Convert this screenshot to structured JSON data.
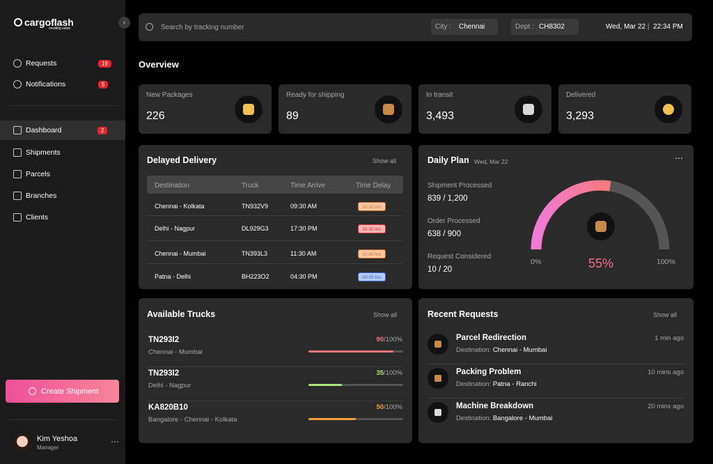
{
  "brand": {
    "name": "cargoflash",
    "tagline": "creating value"
  },
  "nav_top": [
    {
      "label": "Requests",
      "badge": "19"
    },
    {
      "label": "Notifications",
      "badge": "5"
    }
  ],
  "nav_main": [
    {
      "label": "Dashboard",
      "badge": "2"
    },
    {
      "label": "Shipments"
    },
    {
      "label": "Parcels"
    },
    {
      "label": "Branches"
    },
    {
      "label": "Clients"
    }
  ],
  "create_button": "Create Shipment",
  "user": {
    "name": "Kim Yeshoa",
    "role": "Manager"
  },
  "search": {
    "placeholder": "Search by tracking number"
  },
  "filters": [
    {
      "label": "City :",
      "value": "Chennai"
    },
    {
      "label": "Dept :",
      "value": "CH8302"
    }
  ],
  "datetime": {
    "date": "Wed, Mar 22",
    "time": "22:34 PM"
  },
  "overview": {
    "title": "Overview",
    "cards": [
      {
        "label": "New Packages",
        "value": "226"
      },
      {
        "label": "Ready for shipping",
        "value": "89"
      },
      {
        "label": "In transit",
        "value": "3,493"
      },
      {
        "label": "Delivered",
        "value": "3,293"
      }
    ]
  },
  "delayed": {
    "title": "Delayed Delivery",
    "show_all": "Show all",
    "columns": [
      "Destination",
      "Truck",
      "Time Arrive",
      "Time Delay"
    ],
    "rows": [
      {
        "destination": "Chennai -  Kolkata",
        "truck": "TN932V9",
        "arrive": "09:30 AM",
        "delay": "02:30 hrs",
        "tone": "orange"
      },
      {
        "destination": "Delhi -  Nagpur",
        "truck": "DL929G3",
        "arrive": "17:30 PM",
        "delay": "05:30 hrs",
        "tone": "red"
      },
      {
        "destination": "Chennai -  Mumbai",
        "truck": "TN393L3",
        "arrive": "11:30 AM",
        "delay": "01:40 hrs",
        "tone": "orange"
      },
      {
        "destination": "Patna -  Delhi",
        "truck": "BH223O2",
        "arrive": "04:30 PM",
        "delay": "00:00 hrs",
        "tone": "blue"
      }
    ]
  },
  "daily_plan": {
    "title": "Daily Plan",
    "date": "Wed, Mar 22",
    "stats": [
      {
        "label": "Shipment Processed",
        "value": "839 / 1,200"
      },
      {
        "label": "Order Processed",
        "value": "638 / 900"
      },
      {
        "label": "Request Considered",
        "value": "10 / 20"
      }
    ],
    "gauge": {
      "value": 55,
      "label": "55%",
      "min_label": "0%",
      "max_label": "100%"
    }
  },
  "trucks": {
    "title": "Available Trucks",
    "show_all": "Show all",
    "items": [
      {
        "id": "TN293I2",
        "route": "Chennai -  Mumbai",
        "load": 90,
        "load_suffix": "/100%",
        "color": "#f07878"
      },
      {
        "id": "TN293I2",
        "route": "Delhi -  Nagpur",
        "load": 35,
        "load_suffix": "/100%",
        "color": "#a6e87a"
      },
      {
        "id": "KA820B10",
        "route": "Bangalore - Chennai -  Kolkata",
        "load": 50,
        "load_suffix": "/100%",
        "color": "#f5a03a"
      }
    ]
  },
  "requests": {
    "title": "Recent Requests",
    "show_all": "Show all",
    "items": [
      {
        "title": "Parcel Redirection",
        "destination_label": "Destination:",
        "destination": "Chennai -  Mumbai",
        "time": "1 min ago"
      },
      {
        "title": "Packing  Problem",
        "destination_label": "Destination:",
        "destination": "Patna -  Ranchi",
        "time": "10 mins ago"
      },
      {
        "title": "Machine Breakdown",
        "destination_label": "Destination:",
        "destination": "Bangalore -  Mumbai",
        "time": "20 mins ago"
      }
    ]
  }
}
